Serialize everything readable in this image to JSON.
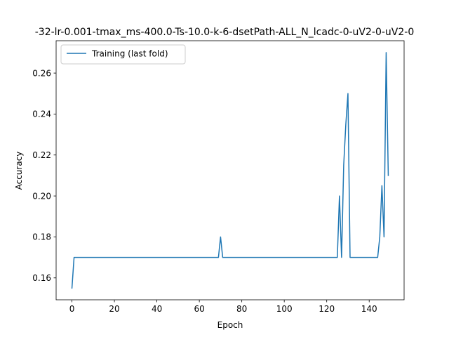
{
  "chart_data": {
    "type": "line",
    "title": "-32-lr-0.001-tmax_ms-400.0-Ts-10.0-k-6-dsetPath-ALL_N_lcadc-0-uV2-0-uV2-0",
    "xlabel": "Epoch",
    "ylabel": "Accuracy",
    "xlim": [
      -7.45,
      156.45
    ],
    "ylim": [
      0.1493,
      0.2758
    ],
    "xticks": [
      0,
      20,
      40,
      60,
      80,
      100,
      120,
      140
    ],
    "yticks": [
      0.16,
      0.18,
      0.2,
      0.22,
      0.24,
      0.26
    ],
    "ytick_labels": [
      "0.16",
      "0.18",
      "0.20",
      "0.22",
      "0.24",
      "0.26"
    ],
    "grid": false,
    "legend_position": "upper-left",
    "series": [
      {
        "name": "Training (last fold)",
        "color": "#1f77b4",
        "x": [
          0,
          1,
          69,
          70,
          71,
          125,
          126,
          127,
          128,
          129,
          130,
          131,
          144,
          145,
          146,
          147,
          148,
          149
        ],
        "y": [
          0.155,
          0.17,
          0.17,
          0.18,
          0.17,
          0.17,
          0.2,
          0.17,
          0.215,
          0.235,
          0.25,
          0.17,
          0.17,
          0.18,
          0.205,
          0.18,
          0.27,
          0.21
        ]
      }
    ]
  }
}
